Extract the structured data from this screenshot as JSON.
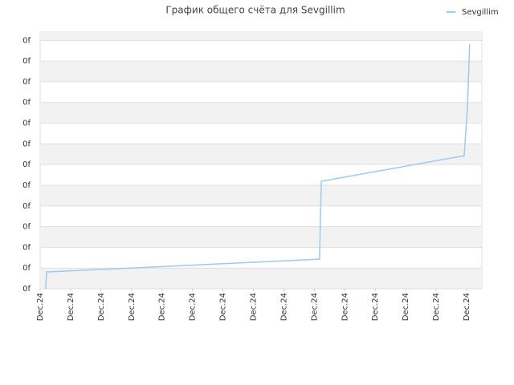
{
  "chart_data": {
    "type": "line",
    "title": "График общего счёта для Sevgillim",
    "series": [
      {
        "name": "Sevgillim",
        "color": "#99ccee",
        "x": [
          0.18,
          0.21,
          9.17,
          9.23,
          13.92,
          14.03,
          14.1
        ],
        "values": [
          0,
          0.81,
          1.43,
          5.19,
          6.43,
          8.9,
          11.81
        ]
      }
    ],
    "xlim": [
      0,
      14.5
    ],
    "xticks": [
      {
        "value": 0,
        "label": "Dec.24"
      },
      {
        "value": 1,
        "label": "Dec.24"
      },
      {
        "value": 2,
        "label": "Dec.24"
      },
      {
        "value": 3,
        "label": "Dec.24"
      },
      {
        "value": 4,
        "label": "Dec.24"
      },
      {
        "value": 5,
        "label": "Dec.24"
      },
      {
        "value": 6,
        "label": "Dec.24"
      },
      {
        "value": 7,
        "label": "Dec.24"
      },
      {
        "value": 8,
        "label": "Dec.24"
      },
      {
        "value": 9,
        "label": "Dec.24"
      },
      {
        "value": 10,
        "label": "Dec.24"
      },
      {
        "value": 11,
        "label": "Dec.24"
      },
      {
        "value": 12,
        "label": "Dec.24"
      },
      {
        "value": 13,
        "label": "Dec.24"
      },
      {
        "value": 14,
        "label": "Dec.24"
      }
    ],
    "ylim": [
      0,
      12.4
    ],
    "yticks": [
      {
        "value": 0,
        "label": "0f"
      },
      {
        "value": 1,
        "label": "0f"
      },
      {
        "value": 2,
        "label": "0f"
      },
      {
        "value": 3,
        "label": "0f"
      },
      {
        "value": 4,
        "label": "0f"
      },
      {
        "value": 5,
        "label": "0f"
      },
      {
        "value": 6,
        "label": "0f"
      },
      {
        "value": 7,
        "label": "0f"
      },
      {
        "value": 8,
        "label": "0f"
      },
      {
        "value": 9,
        "label": "0f"
      },
      {
        "value": 10,
        "label": "0f"
      },
      {
        "value": 11,
        "label": "0f"
      },
      {
        "value": 12,
        "label": "0f"
      }
    ],
    "grid": true,
    "legend": "top-right"
  }
}
